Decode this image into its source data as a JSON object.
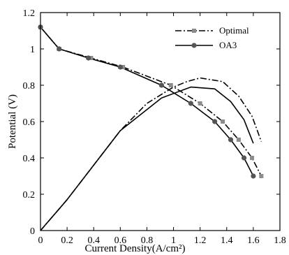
{
  "chart_data": {
    "type": "line",
    "xlabel": "Current Density(A/cm²)",
    "ylabel": "Potential (V)",
    "xlim": [
      0,
      1.8
    ],
    "ylim": [
      0,
      1.2
    ],
    "x_ticks": [
      "0",
      "0.2",
      "0.4",
      "0.6",
      "0.8",
      "1",
      "1.2",
      "1.4",
      "1.6",
      "1.8"
    ],
    "y_ticks": [
      "0",
      "0.2",
      "0.4",
      "0.6",
      "0.8",
      "1",
      "1.2"
    ],
    "legend_position": "top-right",
    "grid": false,
    "series": [
      {
        "name": "Optimal",
        "role": "polarization",
        "line_style": "dash-dot",
        "marker": "square",
        "color": "#000000",
        "marker_color": "#8c8c8c",
        "points": [
          [
            0,
            1.12
          ],
          [
            0.14,
            1.0
          ],
          [
            0.38,
            0.95
          ],
          [
            0.62,
            0.9
          ],
          [
            0.98,
            0.8
          ],
          [
            1.2,
            0.7
          ],
          [
            1.37,
            0.6
          ],
          [
            1.49,
            0.5
          ],
          [
            1.59,
            0.4
          ],
          [
            1.66,
            0.3
          ]
        ]
      },
      {
        "name": "OA3",
        "role": "polarization",
        "line_style": "solid",
        "marker": "circle",
        "color": "#000000",
        "marker_color": "#555555",
        "points": [
          [
            0,
            1.12
          ],
          [
            0.14,
            1.0
          ],
          [
            0.36,
            0.95
          ],
          [
            0.6,
            0.9
          ],
          [
            0.91,
            0.8
          ],
          [
            1.13,
            0.7
          ],
          [
            1.31,
            0.6
          ],
          [
            1.43,
            0.5
          ],
          [
            1.53,
            0.4
          ],
          [
            1.6,
            0.3
          ]
        ]
      },
      {
        "name": "Optimal",
        "role": "power",
        "line_style": "dash-dot",
        "marker": "none",
        "color": "#000000",
        "points": [
          [
            0,
            0
          ],
          [
            0.2,
            0.17
          ],
          [
            0.4,
            0.36
          ],
          [
            0.6,
            0.55
          ],
          [
            0.8,
            0.7
          ],
          [
            1.0,
            0.79
          ],
          [
            1.1,
            0.82
          ],
          [
            1.2,
            0.84
          ],
          [
            1.37,
            0.82
          ],
          [
            1.49,
            0.74
          ],
          [
            1.59,
            0.63
          ],
          [
            1.66,
            0.49
          ]
        ]
      },
      {
        "name": "OA3",
        "role": "power",
        "line_style": "solid",
        "marker": "none",
        "color": "#000000",
        "points": [
          [
            0,
            0
          ],
          [
            0.2,
            0.17
          ],
          [
            0.4,
            0.36
          ],
          [
            0.6,
            0.55
          ],
          [
            0.91,
            0.73
          ],
          [
            1.13,
            0.79
          ],
          [
            1.31,
            0.78
          ],
          [
            1.43,
            0.71
          ],
          [
            1.53,
            0.61
          ],
          [
            1.6,
            0.48
          ]
        ]
      }
    ]
  }
}
